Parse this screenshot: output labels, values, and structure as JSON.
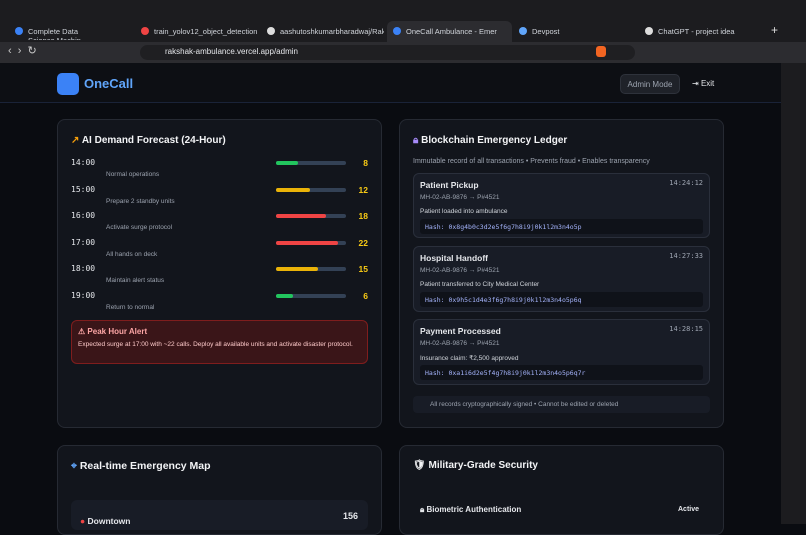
{
  "browser": {
    "tabs": [
      "Complete Data Science,Machin",
      "train_yolov12_object_detection",
      "aashutoshkumarbharadwaj/Raksh",
      "OneCall Ambulance - Emer",
      "Devpost",
      "ChatGPT - project idea"
    ],
    "url": "rakshak-ambulance.vercel.app/admin"
  },
  "header": {
    "brand": "OneCall",
    "mode_button": "Admin Mode",
    "exit_button": "Exit"
  },
  "forecast": {
    "title": "AI Demand Forecast (24-Hour)",
    "rows": [
      {
        "time": "14:00",
        "note": "Normal operations",
        "calls": 8,
        "color": "#22c55e"
      },
      {
        "time": "15:00",
        "note": "Prepare 2 standby units",
        "calls": 12,
        "color": "#eab308"
      },
      {
        "time": "16:00",
        "note": "Activate surge protocol",
        "calls": 18,
        "color": "#ef4444"
      },
      {
        "time": "17:00",
        "note": "All hands on deck",
        "calls": 22,
        "color": "#ef4444"
      },
      {
        "time": "18:00",
        "note": "Maintain alert status",
        "calls": 15,
        "color": "#eab308"
      },
      {
        "time": "19:00",
        "note": "Return to normal",
        "calls": 6,
        "color": "#22c55e"
      }
    ],
    "alert": {
      "title": "Peak Hour Alert",
      "text": "Expected surge at 17:00 with ~22 calls. Deploy all available units and activate disaster protocol."
    }
  },
  "ledger": {
    "title": "Blockchain Emergency Ledger",
    "subtitle": "Immutable record of all transactions • Prevents fraud • Enables transparency",
    "entries": [
      {
        "title": "Patient Pickup",
        "time": "14:24:12",
        "route": "MH-02-AB-9876 → P#4521",
        "detail": "Patient loaded into ambulance",
        "hash": "Hash: 0x8g4b0c3d2e5f6g7h8i9j0k1l2m3n4o5p"
      },
      {
        "title": "Hospital Handoff",
        "time": "14:27:33",
        "route": "MH-02-AB-9876 → P#4521",
        "detail": "Patient transferred to City Medical Center",
        "hash": "Hash: 0x9h5c1d4e3f6g7h8i9j0k1l2m3n4o5p6q"
      },
      {
        "title": "Payment Processed",
        "time": "14:28:15",
        "route": "MH-02-AB-9876 → P#4521",
        "detail": "Insurance claim: ₹2,500 approved",
        "hash": "Hash: 0xa1i6d2e5f4g7h8i9j0k1l2m3n4o5p6q7r"
      }
    ],
    "footer": "All records cryptographically signed • Cannot be edited or deleted"
  },
  "map": {
    "title": "Real-time Emergency Map",
    "zones": [
      {
        "name": "Downtown",
        "count": 156
      }
    ]
  },
  "security": {
    "title": "Military-Grade Security",
    "items": [
      {
        "name": "Biometric Authentication",
        "status": "Active"
      }
    ]
  }
}
